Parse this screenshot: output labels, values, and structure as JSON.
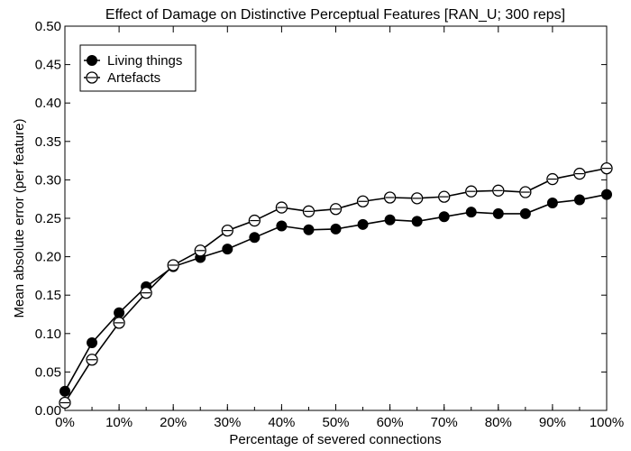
{
  "chart_data": {
    "type": "line",
    "title": "Effect of Damage on Distinctive Perceptual Features [RAN_U; 300 reps]",
    "xlabel": "Percentage of severed connections",
    "ylabel": "Mean absolute error (per feature)",
    "x": [
      0,
      5,
      10,
      15,
      20,
      25,
      30,
      35,
      40,
      45,
      50,
      55,
      60,
      65,
      70,
      75,
      80,
      85,
      90,
      95,
      100
    ],
    "xlim": [
      0,
      100
    ],
    "ylim": [
      0,
      0.5
    ],
    "x_ticks": [
      "0%",
      "10%",
      "20%",
      "30%",
      "40%",
      "50%",
      "60%",
      "70%",
      "80%",
      "90%",
      "100%"
    ],
    "x_tick_values": [
      0,
      10,
      20,
      30,
      40,
      50,
      60,
      70,
      80,
      90,
      100
    ],
    "y_ticks": [
      "0.00",
      "0.05",
      "0.10",
      "0.15",
      "0.20",
      "0.25",
      "0.30",
      "0.35",
      "0.40",
      "0.45",
      "0.50"
    ],
    "y_tick_values": [
      0,
      0.05,
      0.1,
      0.15,
      0.2,
      0.25,
      0.3,
      0.35,
      0.4,
      0.45,
      0.5
    ],
    "grid": false,
    "legend_position": "top-left",
    "series": [
      {
        "name": "Living things",
        "marker": "filled-circle",
        "color": "#000000",
        "values": [
          0.025,
          0.088,
          0.127,
          0.161,
          0.187,
          0.199,
          0.21,
          0.225,
          0.24,
          0.235,
          0.236,
          0.242,
          0.248,
          0.246,
          0.252,
          0.258,
          0.256,
          0.256,
          0.27,
          0.274,
          0.281
        ]
      },
      {
        "name": "Artefacts",
        "marker": "open-circle-errorbar",
        "color": "#000000",
        "values": [
          0.01,
          0.066,
          0.114,
          0.153,
          0.189,
          0.208,
          0.234,
          0.247,
          0.264,
          0.259,
          0.262,
          0.272,
          0.277,
          0.276,
          0.278,
          0.285,
          0.286,
          0.284,
          0.301,
          0.308,
          0.315
        ]
      }
    ]
  }
}
